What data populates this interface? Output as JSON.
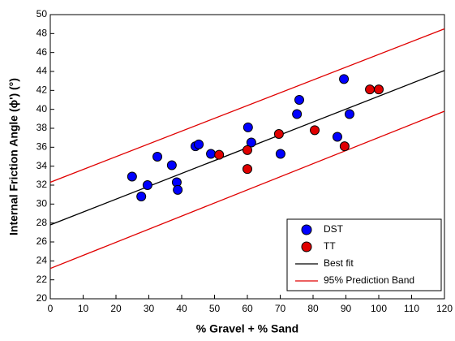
{
  "chart_data": {
    "type": "scatter",
    "x_label": "% Gravel + % Sand",
    "y_label": "Internal Friction Angle (ϕ') (°)",
    "xlim": [
      0,
      120
    ],
    "xticks": [
      0,
      10,
      20,
      30,
      40,
      50,
      60,
      70,
      80,
      90,
      100,
      110,
      120
    ],
    "ylim": [
      20,
      50
    ],
    "yticks": [
      20,
      22,
      24,
      26,
      28,
      30,
      32,
      34,
      36,
      38,
      40,
      42,
      44,
      46,
      48,
      50
    ],
    "legend": "lower right",
    "series": [
      {
        "name": "DST",
        "style": "marker",
        "color": "#0000ff",
        "x": [
          24.9,
          27.7,
          29.6,
          32.6,
          37.0,
          38.5,
          38.8,
          44.2,
          45.2,
          48.9,
          60.2,
          61.2,
          70.1,
          75.1,
          75.8,
          87.4,
          89.4,
          91.1
        ],
        "values": [
          32.9,
          30.8,
          32.0,
          35.0,
          34.1,
          32.3,
          31.5,
          36.1,
          36.3,
          35.3,
          38.1,
          36.5,
          35.3,
          39.5,
          41.0,
          37.1,
          43.2,
          39.5
        ]
      },
      {
        "name": "TT",
        "style": "marker",
        "color": "#e00000",
        "x": [
          51.4,
          60.0,
          60.0,
          69.6,
          80.5,
          89.6,
          97.3,
          100.0
        ],
        "values": [
          35.2,
          35.7,
          33.7,
          37.4,
          37.8,
          36.1,
          42.1,
          42.1
        ]
      },
      {
        "name": "Best fit",
        "style": "line",
        "color": "#000000",
        "x": [
          0,
          120
        ],
        "values": [
          27.8,
          44.1
        ]
      },
      {
        "name": "95% Prediction Band",
        "style": "line",
        "color": "#e00000",
        "x": [
          0,
          120
        ],
        "values": [
          32.3,
          48.5
        ]
      },
      {
        "style": "line",
        "color": "#e00000",
        "x": [
          0,
          120
        ],
        "values": [
          23.2,
          39.8
        ]
      }
    ]
  }
}
